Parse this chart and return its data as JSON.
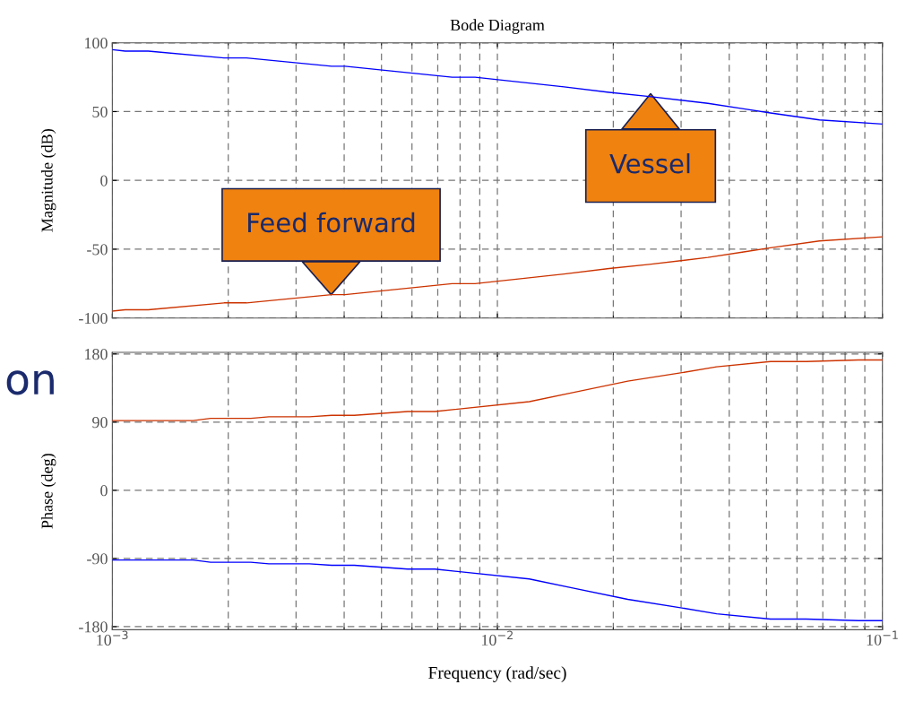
{
  "chart_data": [
    {
      "type": "line",
      "title": "Bode Diagram",
      "ylabel": "Magnitude (dB)",
      "log": "x",
      "grid": true,
      "tick_labels": "y",
      "xlim": [
        0.001,
        0.1
      ],
      "ylim": [
        -100,
        100
      ],
      "yticks": [
        -100,
        -50,
        0,
        50,
        100
      ],
      "series": [
        {
          "color": "#0000ff",
          "x": [
            0.001,
            0.00108,
            0.00124,
            0.00195,
            0.00223,
            0.00371,
            0.00402,
            0.00763,
            0.00875,
            0.0149,
            0.0195,
            0.0248,
            0.0352,
            0.0436,
            0.0512,
            0.0686,
            0.1
          ],
          "values": [
            95,
            94,
            94,
            89,
            89,
            83,
            83,
            75,
            75,
            68,
            64,
            61,
            56,
            52,
            49,
            44,
            41
          ]
        },
        {
          "color": "#cc3300",
          "x": [
            0.001,
            0.00108,
            0.00124,
            0.00195,
            0.00223,
            0.00371,
            0.00402,
            0.00763,
            0.00875,
            0.0149,
            0.0195,
            0.0248,
            0.0352,
            0.0436,
            0.0512,
            0.0686,
            0.1
          ],
          "values": [
            -95,
            -94,
            -94,
            -89,
            -89,
            -83,
            -83,
            -75,
            -75,
            -68,
            -64,
            -61,
            -56,
            -52,
            -49,
            -44,
            -41
          ]
        }
      ],
      "annotations": [
        {
          "text": "Feed forward",
          "x": 0.0037,
          "y": -83
        },
        {
          "text": "Vessel",
          "x": 0.025,
          "y": 63
        }
      ]
    },
    {
      "type": "line",
      "xlabel": "Frequency (rad/sec)",
      "ylabel": "Phase (deg)",
      "log": "x",
      "grid": true,
      "xlim": [
        0.001,
        0.1
      ],
      "ylim": [
        -184,
        182
      ],
      "yticks": [
        -180,
        -90,
        0,
        90,
        180
      ],
      "xticks": [
        {
          "value": 0.001,
          "label": "10$^{−3}$"
        },
        {
          "value": 0.01,
          "label": "10$^{−2}$"
        },
        {
          "value": 0.1,
          "label": "10$^{−1}$"
        }
      ],
      "series": [
        {
          "color": "#cc3300",
          "x": [
            0.001,
            0.00162,
            0.0018,
            0.00229,
            0.00255,
            0.00325,
            0.00371,
            0.00425,
            0.00585,
            0.00688,
            0.0121,
            0.0157,
            0.0218,
            0.0299,
            0.0371,
            0.0512,
            0.0634,
            0.0866,
            0.1
          ],
          "values": [
            92,
            92,
            95,
            95,
            97,
            97,
            99,
            99,
            104,
            104,
            117,
            129,
            144,
            155,
            163,
            170,
            170,
            172,
            172
          ]
        },
        {
          "color": "#0000ff",
          "x": [
            0.001,
            0.00162,
            0.0018,
            0.00229,
            0.00255,
            0.00325,
            0.00371,
            0.00425,
            0.00585,
            0.00688,
            0.0121,
            0.0157,
            0.0218,
            0.0299,
            0.0371,
            0.0512,
            0.0634,
            0.0866,
            0.1
          ],
          "values": [
            -92,
            -92,
            -95,
            -95,
            -97,
            -97,
            -99,
            -99,
            -104,
            -104,
            -117,
            -129,
            -144,
            -155,
            -163,
            -170,
            -170,
            -172,
            -172
          ]
        }
      ],
      "annotations": [
        "on"
      ]
    }
  ]
}
